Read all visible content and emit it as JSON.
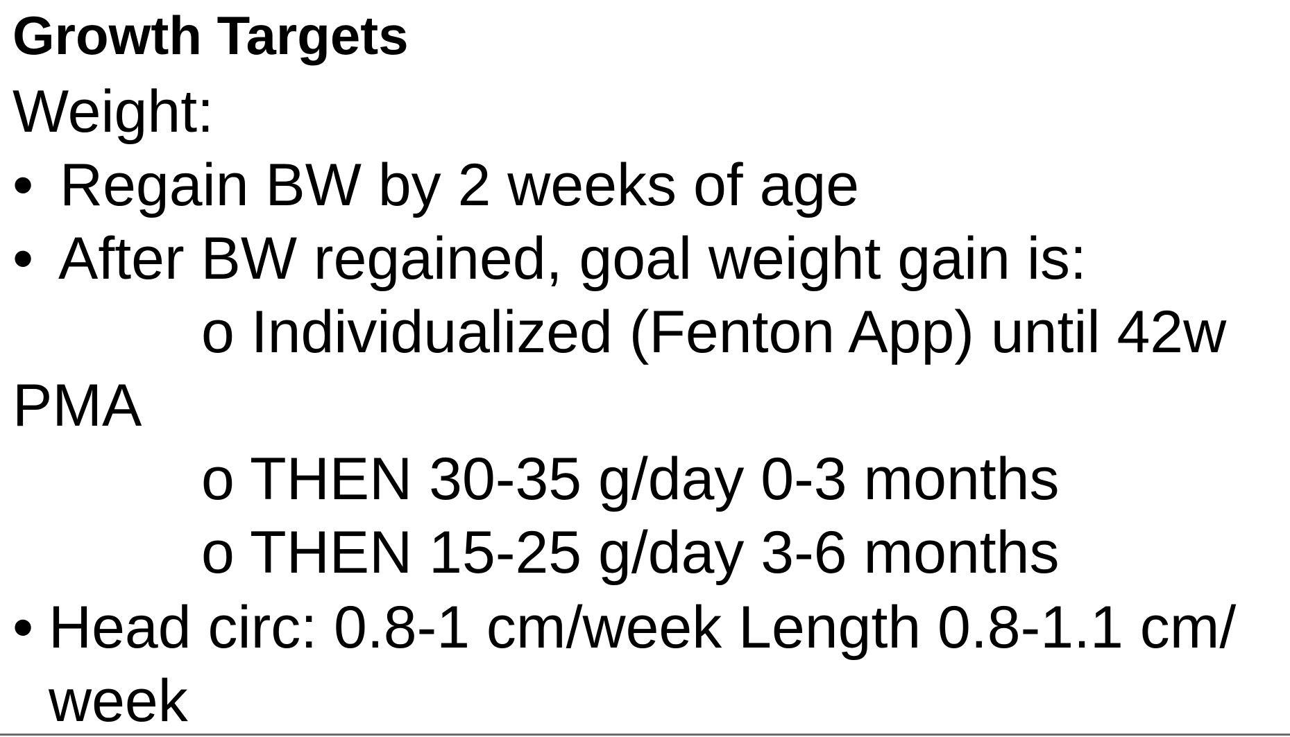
{
  "title": "Growth Targets",
  "weight_label": "Weight:",
  "bullet_symbol": "•",
  "bullets": [
    "Regain BW by 2 weeks of age",
    "After BW regained, goal weight gain is:"
  ],
  "sub_items": [
    "o Individualized (Fenton App) until 42w",
    "PMA",
    "o THEN 30-35 g/day 0-3 months",
    "o THEN 15-25 g/day 3-6 months"
  ],
  "head_circ": {
    "line1": "Head circ: 0.8-1 cm/week Length 0.8-1.1 cm/",
    "line2": "week"
  }
}
